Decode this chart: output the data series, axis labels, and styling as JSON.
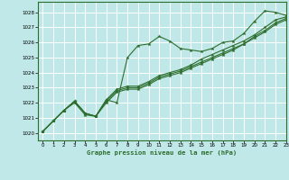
{
  "title": "Graphe pression niveau de la mer (hPa)",
  "bg_color": "#c0e8e8",
  "grid_color": "#ffffff",
  "line_color": "#2d6e2d",
  "xlim": [
    -0.5,
    23
  ],
  "ylim": [
    1019.5,
    1028.7
  ],
  "yticks": [
    1020,
    1021,
    1022,
    1023,
    1024,
    1025,
    1026,
    1027,
    1028
  ],
  "xticks": [
    0,
    1,
    2,
    3,
    4,
    5,
    6,
    7,
    8,
    9,
    10,
    11,
    12,
    13,
    14,
    15,
    16,
    17,
    18,
    19,
    20,
    21,
    22,
    23
  ],
  "series": [
    [
      1020.1,
      1020.8,
      1021.5,
      1022.0,
      1021.2,
      1021.1,
      1022.2,
      1022.0,
      1025.0,
      1025.8,
      1025.9,
      1026.4,
      1026.1,
      1025.6,
      1025.5,
      1025.4,
      1025.6,
      1026.0,
      1026.1,
      1026.6,
      1027.4,
      1028.1,
      1028.0,
      1027.8
    ],
    [
      1020.1,
      1020.8,
      1021.5,
      1022.1,
      1021.3,
      1021.1,
      1022.2,
      1022.9,
      1023.1,
      1023.1,
      1023.4,
      1023.8,
      1024.0,
      1024.2,
      1024.5,
      1024.9,
      1025.2,
      1025.5,
      1025.8,
      1026.1,
      1026.5,
      1027.0,
      1027.5,
      1027.7
    ],
    [
      1020.1,
      1020.8,
      1021.5,
      1022.1,
      1021.3,
      1021.1,
      1022.1,
      1022.8,
      1023.0,
      1023.0,
      1023.3,
      1023.7,
      1023.9,
      1024.1,
      1024.4,
      1024.7,
      1025.0,
      1025.3,
      1025.6,
      1025.9,
      1026.4,
      1026.8,
      1027.3,
      1027.6
    ],
    [
      1020.1,
      1020.8,
      1021.5,
      1022.1,
      1021.3,
      1021.1,
      1022.0,
      1022.7,
      1022.9,
      1022.9,
      1023.2,
      1023.6,
      1023.8,
      1024.0,
      1024.3,
      1024.6,
      1024.9,
      1025.2,
      1025.5,
      1025.9,
      1026.3,
      1026.7,
      1027.2,
      1027.5
    ]
  ]
}
